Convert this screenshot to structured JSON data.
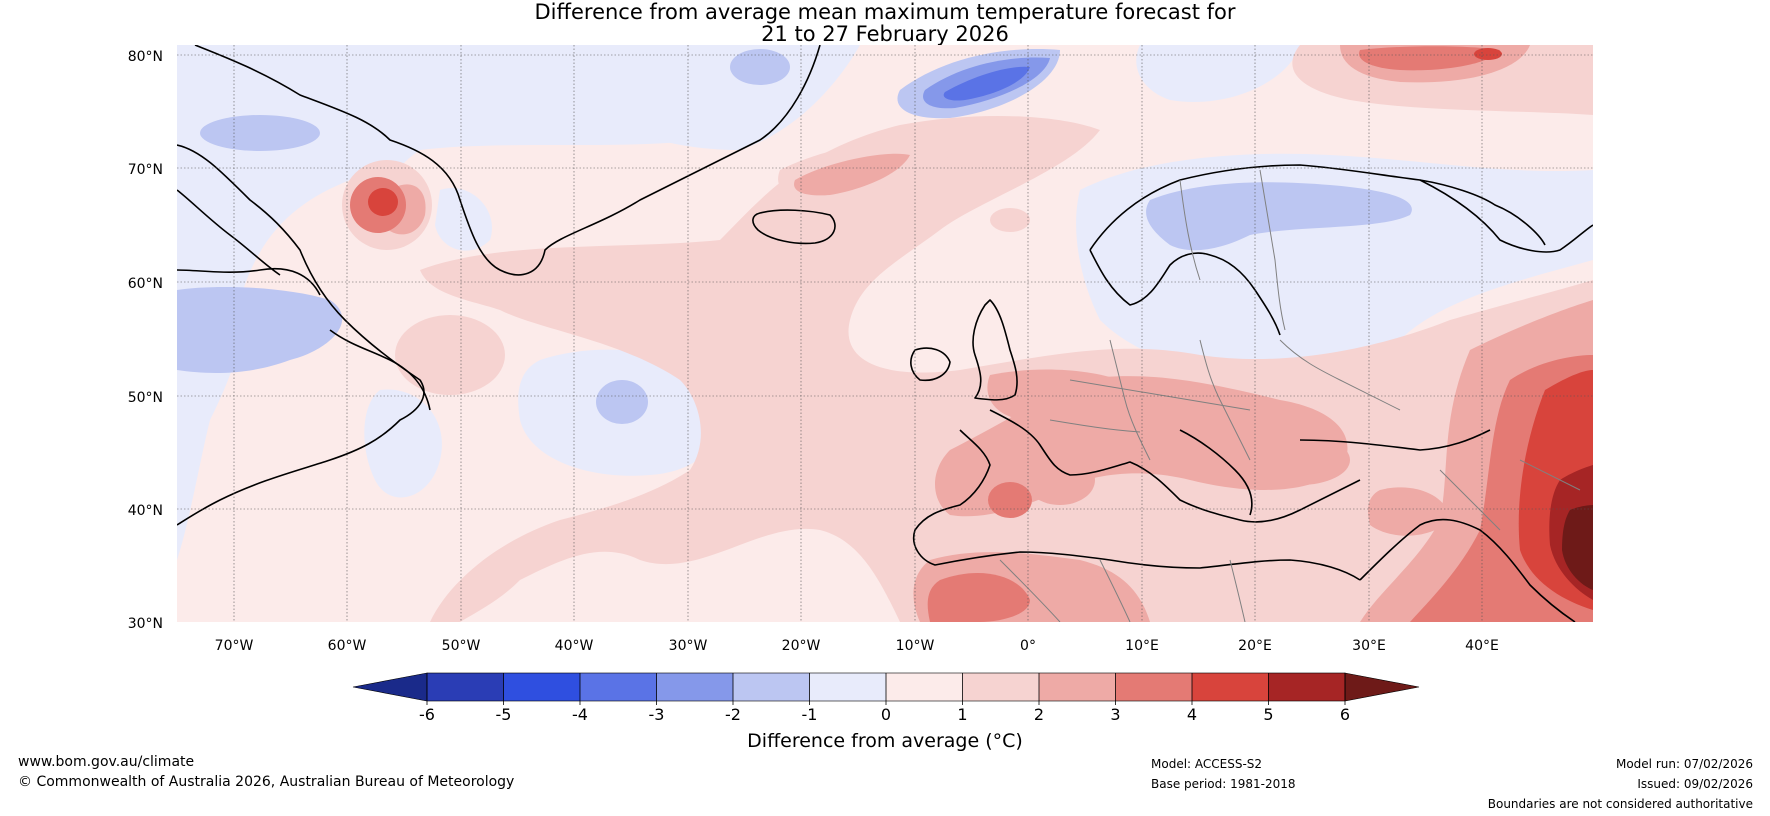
{
  "title": {
    "line1": "Difference from average mean maximum temperature forecast for",
    "line2": "21 to 27 February 2026"
  },
  "map": {
    "lat_labels": [
      "80°N",
      "70°N",
      "60°N",
      "50°N",
      "40°N",
      "30°N"
    ],
    "lon_labels": [
      "70°W",
      "60°W",
      "50°W",
      "40°W",
      "30°W",
      "20°W",
      "10°W",
      "0°",
      "10°E",
      "20°E",
      "30°E",
      "40°E"
    ],
    "lat_range": [
      30,
      80
    ],
    "lon_range": [
      -75,
      50
    ],
    "regions": [
      "Greenland",
      "Canada",
      "Iceland",
      "British Isles",
      "Scandinavia",
      "Europe",
      "North Africa",
      "Middle East"
    ]
  },
  "colorbar": {
    "ticks": [
      "-6",
      "-5",
      "-4",
      "-3",
      "-2",
      "-1",
      "0",
      "1",
      "2",
      "3",
      "4",
      "5",
      "6"
    ],
    "colors": [
      "#1a2a8a",
      "#2a3db5",
      "#2f4fe0",
      "#5a73e6",
      "#8598ea",
      "#bcc6f2",
      "#e8ebfb",
      "#fcebea",
      "#f6d3d1",
      "#eeaaa6",
      "#e47a74",
      "#d8443c",
      "#a62525",
      "#6e1a18"
    ],
    "label": "Difference from average (°C)"
  },
  "footer": {
    "url": "www.bom.gov.au/climate",
    "copyright": "© Commonwealth of Australia 2026, Australian Bureau of Meteorology",
    "model": "Model: ACCESS-S2",
    "base_period": "Base period: 1981-2018",
    "model_run": "Model run: 07/02/2026",
    "issued": "Issued: 09/02/2026",
    "disclaimer": "Boundaries are not considered authoritative"
  },
  "colors": {
    "warm_accent": "#d8443c",
    "cool_accent": "#5a73e6",
    "background": "#ffffff"
  }
}
